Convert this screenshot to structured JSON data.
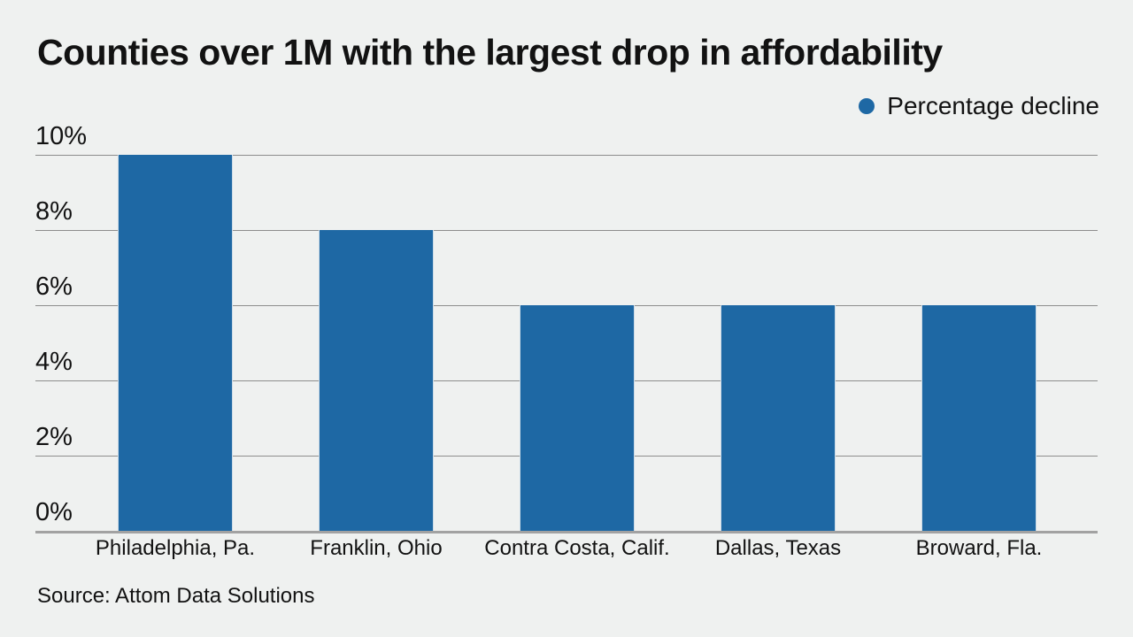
{
  "title": "Counties over 1M with the largest drop in affordability",
  "legend": {
    "label": "Percentage decline",
    "marker": "circle-icon"
  },
  "source_note": "Source: Attom Data Solutions",
  "colors": {
    "background": "#eff1f0",
    "text": "#121212",
    "bar": "#1e68a4",
    "legend_dot": "#1e68a4",
    "gridline": "#8d8d8d",
    "axis_line": "#a2a2a2"
  },
  "chart_data": {
    "type": "bar",
    "title": "Counties over 1M with the largest drop in affordability",
    "categories": [
      "Philadelphia, Pa.",
      "Franklin, Ohio",
      "Contra Costa, Calif.",
      "Dallas, Texas",
      "Broward, Fla."
    ],
    "series": [
      {
        "name": "Percentage decline",
        "values": [
          10,
          8,
          6,
          6,
          6
        ]
      }
    ],
    "xlabel": "",
    "ylabel": "",
    "ylim": [
      0,
      10
    ],
    "yticks": [
      0,
      2,
      4,
      6,
      8,
      10
    ],
    "ytick_format": "{v}%",
    "grid": true,
    "legend_position": "top-right"
  }
}
